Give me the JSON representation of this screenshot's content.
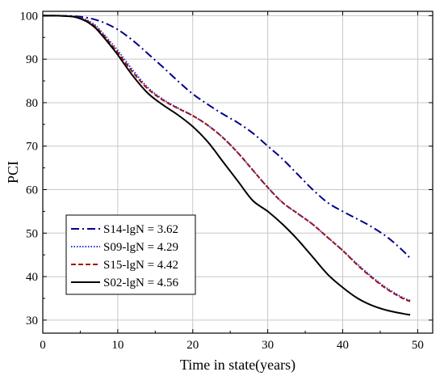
{
  "chart_data": {
    "type": "line",
    "title": "",
    "xlabel": "Time in state(years)",
    "ylabel": "PCI",
    "xlim": [
      0,
      52
    ],
    "ylim": [
      27,
      101
    ],
    "xticks": [
      0,
      10,
      20,
      30,
      40,
      50
    ],
    "yticks": [
      30,
      40,
      50,
      60,
      70,
      80,
      90,
      100
    ],
    "x_tick_labels": [
      "0",
      "10",
      "20",
      "30",
      "40",
      "50"
    ],
    "y_tick_labels": [
      "30",
      "40",
      "50",
      "60",
      "70",
      "80",
      "90",
      "100"
    ],
    "grid": true,
    "legend_position": "bottom-left",
    "series": [
      {
        "name": "S14-lgN = 3.62",
        "color": "#00008B",
        "dash": "dash-dot",
        "x": [
          0,
          2,
          4,
          6,
          8,
          10,
          12,
          14,
          16,
          18,
          20,
          22,
          24,
          26,
          28,
          30,
          32,
          34,
          36,
          38,
          40,
          42,
          44,
          46,
          48,
          49
        ],
        "y": [
          100,
          100,
          99.9,
          99.5,
          98.5,
          96.8,
          94.3,
          91.3,
          88.2,
          85.0,
          82.0,
          79.6,
          77.4,
          75.4,
          73.0,
          70.0,
          67.0,
          63.5,
          60.0,
          57.0,
          55.0,
          53.2,
          51.3,
          49.0,
          46.0,
          44.2
        ]
      },
      {
        "name": "S09-lgN = 4.29",
        "color": "#1f2fe0",
        "dash": "dotted",
        "x": [
          0,
          2,
          4,
          5,
          6,
          7,
          8,
          9,
          10,
          12,
          14,
          16,
          18,
          20,
          22,
          24,
          26,
          28,
          30,
          32,
          34,
          36,
          38,
          40,
          42,
          44,
          46,
          48,
          49
        ],
        "y": [
          100,
          100,
          99.8,
          99.5,
          98.9,
          97.8,
          96.0,
          94.0,
          92.0,
          87.5,
          83.5,
          80.8,
          78.8,
          77.0,
          74.8,
          72.0,
          68.5,
          64.5,
          60.5,
          57.0,
          54.5,
          52.0,
          49.0,
          46.0,
          42.8,
          39.8,
          37.2,
          35.2,
          34.5
        ]
      },
      {
        "name": "S15-lgN = 4.42",
        "color": "#a01010",
        "dash": "dashed",
        "x": [
          0,
          2,
          4,
          5,
          6,
          7,
          8,
          9,
          10,
          12,
          14,
          16,
          18,
          20,
          22,
          24,
          26,
          28,
          30,
          32,
          34,
          36,
          38,
          40,
          42,
          44,
          46,
          48,
          49
        ],
        "y": [
          100,
          100,
          99.8,
          99.4,
          98.7,
          97.5,
          95.7,
          93.6,
          91.5,
          87.0,
          83.2,
          80.6,
          78.7,
          77.0,
          74.8,
          72.0,
          68.5,
          64.5,
          60.5,
          57.0,
          54.5,
          52.0,
          49.0,
          46.0,
          42.6,
          39.6,
          37.0,
          35.0,
          34.3
        ]
      },
      {
        "name": "S02-lgN = 4.56",
        "color": "#000000",
        "dash": "solid",
        "x": [
          0,
          2,
          4,
          5,
          6,
          7,
          8,
          9,
          10,
          12,
          14,
          16,
          18,
          20,
          22,
          24,
          26,
          28,
          30,
          32,
          34,
          36,
          38,
          40,
          42,
          44,
          46,
          48,
          49
        ],
        "y": [
          100,
          100,
          99.8,
          99.3,
          98.5,
          97.2,
          95.3,
          93.2,
          91.0,
          86.2,
          82.2,
          79.5,
          77.2,
          74.5,
          71.0,
          66.5,
          62.0,
          57.5,
          55.0,
          52.0,
          48.5,
          44.5,
          40.5,
          37.5,
          35.0,
          33.3,
          32.2,
          31.5,
          31.2
        ]
      }
    ]
  }
}
